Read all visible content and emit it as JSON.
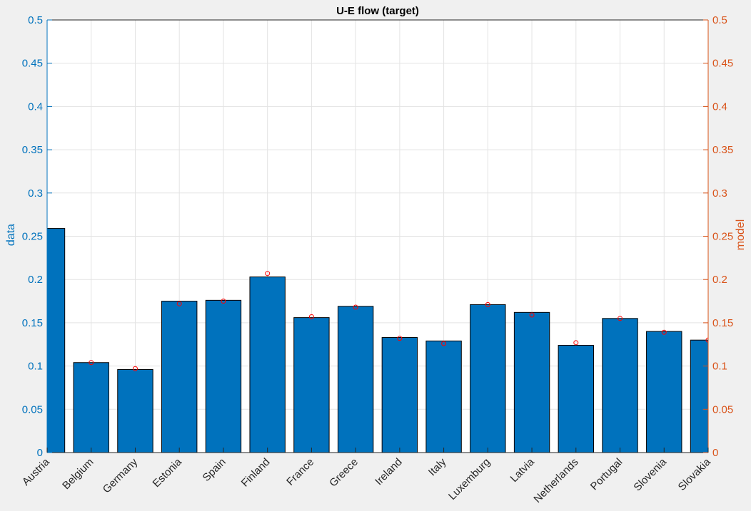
{
  "chart_data": {
    "type": "bar",
    "title": "U-E flow (target)",
    "ylabel_left": "data",
    "ylabel_right": "model",
    "ylim": [
      0,
      0.5
    ],
    "yticks": [
      "0",
      "0.05",
      "0.1",
      "0.15",
      "0.2",
      "0.25",
      "0.3",
      "0.35",
      "0.4",
      "0.45",
      "0.5"
    ],
    "grid": true,
    "categories": [
      "Austria",
      "Belgium",
      "Germany",
      "Estonia",
      "Spain",
      "Finland",
      "France",
      "Greece",
      "Ireland",
      "Italy",
      "Luxemburg",
      "Latvia",
      "Netherlands",
      "Portugal",
      "Slovenia",
      "Slovakia"
    ],
    "series": [
      {
        "name": "data",
        "type": "bar",
        "color": "#0072bd",
        "values": [
          0.259,
          0.104,
          0.096,
          0.175,
          0.176,
          0.203,
          0.156,
          0.169,
          0.133,
          0.129,
          0.171,
          0.162,
          0.124,
          0.155,
          0.14,
          0.13
        ]
      },
      {
        "name": "model",
        "type": "scatter",
        "color": "#ff0000",
        "values": [
          null,
          0.104,
          0.097,
          0.172,
          0.175,
          0.207,
          0.157,
          0.168,
          0.132,
          0.126,
          0.171,
          0.159,
          0.127,
          0.155,
          0.139,
          0.13
        ]
      }
    ]
  }
}
